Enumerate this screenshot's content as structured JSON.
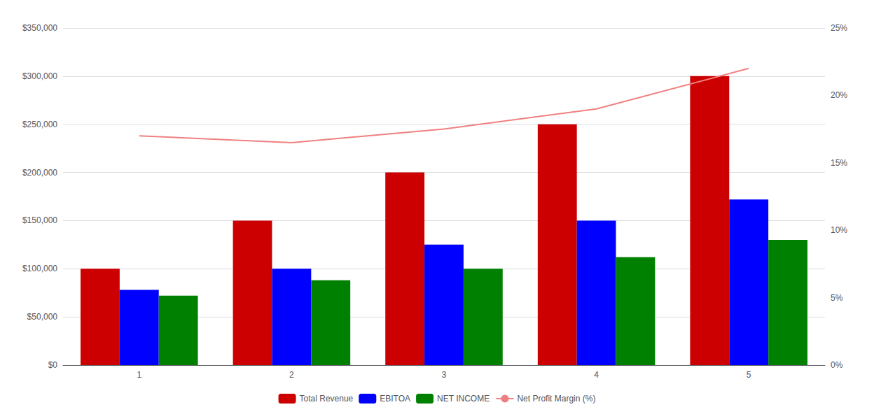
{
  "chart_data": {
    "type": "bar",
    "categories": [
      "1",
      "2",
      "3",
      "4",
      "5"
    ],
    "series": [
      {
        "name": "Total Revenue",
        "color": "#cc0000",
        "values": [
          100000,
          150000,
          200000,
          250000,
          300000
        ]
      },
      {
        "name": "EBITOA",
        "color": "#0000ff",
        "values": [
          78000,
          100000,
          125000,
          150000,
          172000
        ]
      },
      {
        "name": "NET INCOME",
        "color": "#008000",
        "values": [
          72000,
          88000,
          100000,
          112000,
          130000
        ]
      },
      {
        "name": "Net Profit Margin (%)",
        "type": "line",
        "color": "#f08080",
        "axis": "y2",
        "values": [
          17.0,
          16.5,
          17.5,
          19.0,
          22.0
        ]
      }
    ],
    "ylim": [
      0,
      350000
    ],
    "yticks": [
      {
        "value": 0,
        "label": "$0"
      },
      {
        "value": 50000,
        "label": "$50,000"
      },
      {
        "value": 100000,
        "label": "$100,000"
      },
      {
        "value": 150000,
        "label": "$150,000"
      },
      {
        "value": 200000,
        "label": "$200,000"
      },
      {
        "value": 250000,
        "label": "$250,000"
      },
      {
        "value": 300000,
        "label": "$300,000"
      },
      {
        "value": 350000,
        "label": "$350,000"
      }
    ],
    "y2lim": [
      0,
      25
    ],
    "y2ticks": [
      {
        "value": 0,
        "label": "0%"
      },
      {
        "value": 5,
        "label": "5%"
      },
      {
        "value": 10,
        "label": "10%"
      },
      {
        "value": 15,
        "label": "15%"
      },
      {
        "value": 20,
        "label": "20%"
      },
      {
        "value": 25,
        "label": "25%"
      }
    ],
    "grid": true,
    "legend": "bottom"
  }
}
